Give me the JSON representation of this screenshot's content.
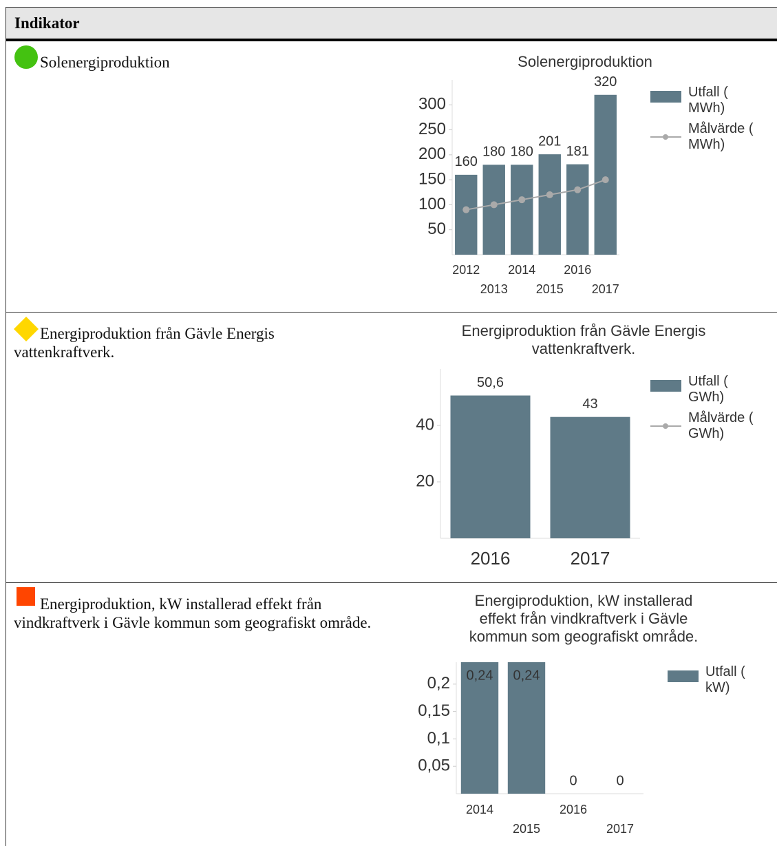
{
  "table": {
    "header": "Indikator",
    "rows": [
      {
        "status": {
          "shape": "circle",
          "color": "#44c211"
        },
        "label": "Solenergiproduktion",
        "chart": {
          "type": "bar",
          "title": [
            "Solenergiproduktion"
          ],
          "categories": [
            "2012",
            "2013",
            "2014",
            "2015",
            "2016",
            "2017"
          ],
          "series": [
            {
              "name": "Utfall ( MWh)",
              "color": "#5f7a87",
              "values": [
                160,
                180,
                180,
                201,
                181,
                320
              ]
            },
            {
              "name": "Målvärde ( MWh)",
              "color": "#aaaaaa",
              "type": "line",
              "values": [
                90,
                100,
                110,
                120,
                130,
                150
              ]
            }
          ],
          "ylim": [
            0,
            350
          ],
          "yticks": [
            50,
            100,
            150,
            200,
            250,
            300
          ]
        }
      },
      {
        "status": {
          "shape": "diamond",
          "color": "#ffd700"
        },
        "label": "Energiproduktion från Gävle Energis vattenkraftverk.",
        "chart": {
          "type": "bar",
          "title": [
            "Energiproduktion från Gävle Energis",
            "vattenkraftverk."
          ],
          "categories": [
            "2016",
            "2017"
          ],
          "series": [
            {
              "name": "Utfall ( GWh)",
              "color": "#5f7a87",
              "values": [
                50.6,
                43
              ],
              "value_labels": [
                "50,6",
                "43"
              ]
            },
            {
              "name": "Målvärde ( GWh)",
              "color": "#aaaaaa",
              "type": "line",
              "values": [
                null,
                null
              ]
            }
          ],
          "ylim": [
            0,
            60
          ],
          "yticks": [
            20,
            40
          ]
        }
      },
      {
        "status": {
          "shape": "square",
          "color": "#ff4500"
        },
        "label": "Energiproduktion, kW installerad effekt från vindkraftverk i Gävle kommun som geografiskt område.",
        "chart": {
          "type": "bar",
          "title": [
            "Energiproduktion, kW installerad",
            "effekt från vindkraftverk i Gävle",
            "kommun som geografiskt område."
          ],
          "categories": [
            "2014",
            "2015",
            "2016",
            "2017"
          ],
          "series": [
            {
              "name": "Utfall ( kW)",
              "color": "#5f7a87",
              "values": [
                0.24,
                0.24,
                0,
                0
              ],
              "value_labels": [
                "0,24",
                "0,24",
                "0",
                "0"
              ]
            }
          ],
          "ylim": [
            0,
            0.24
          ],
          "yticks": [
            {
              "value": 0.05,
              "label": "0,05"
            },
            {
              "value": 0.1,
              "label": "0,1"
            },
            {
              "value": 0.15,
              "label": "0,15"
            },
            {
              "value": 0.2,
              "label": "0,2"
            }
          ]
        }
      }
    ]
  }
}
